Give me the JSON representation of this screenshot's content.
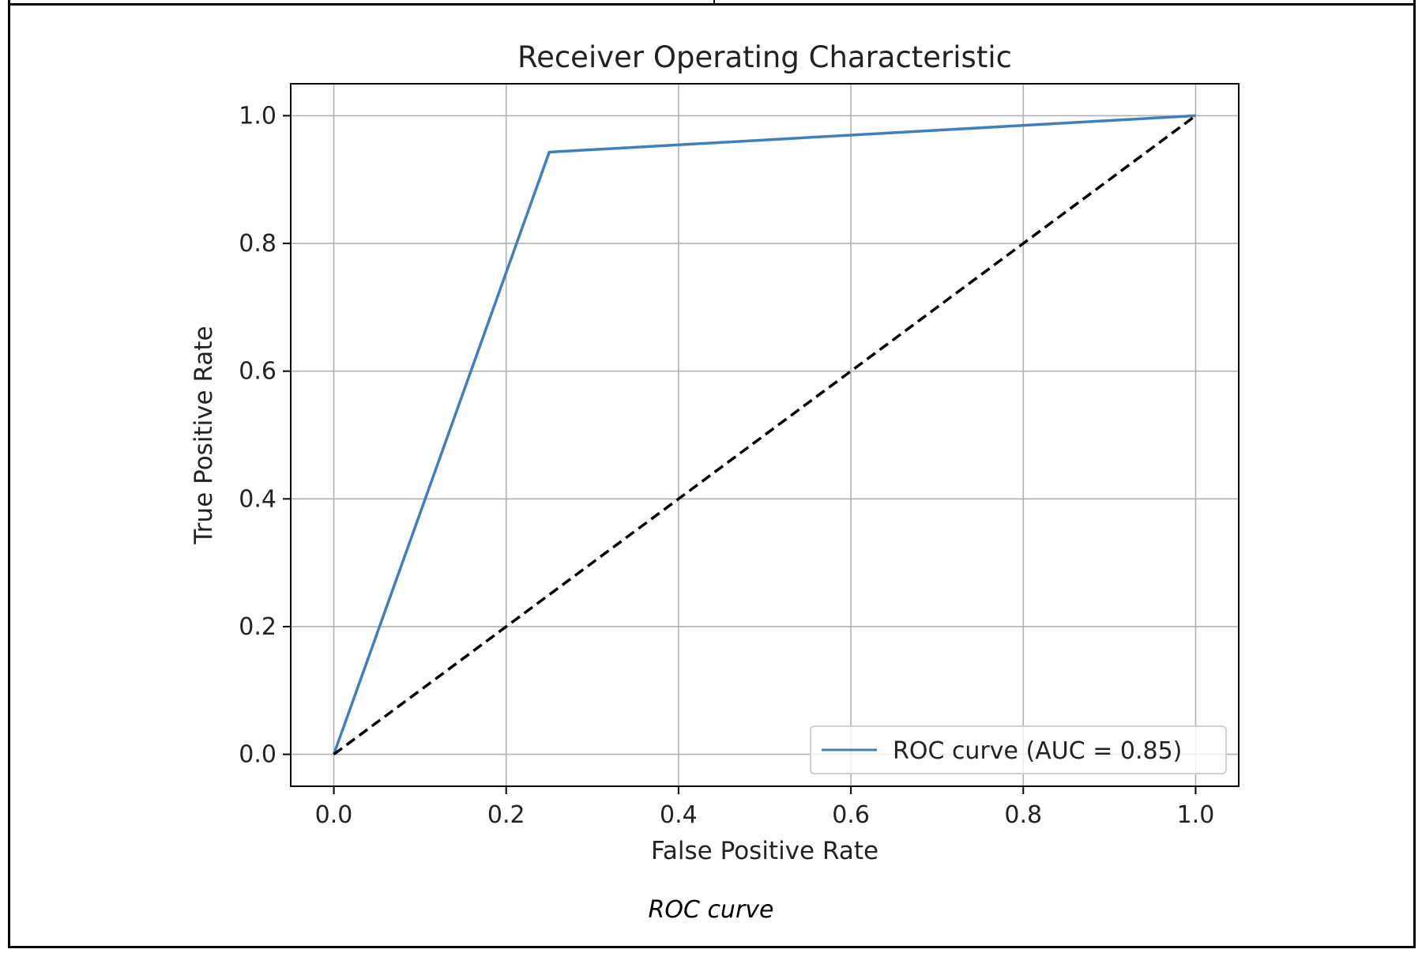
{
  "chart_data": {
    "type": "line",
    "title": "Receiver Operating Characteristic",
    "xlabel": "False Positive Rate",
    "ylabel": "True Positive Rate",
    "xlim": [
      -0.05,
      1.05
    ],
    "ylim": [
      -0.05,
      1.05
    ],
    "xticks": [
      0.0,
      0.2,
      0.4,
      0.6,
      0.8,
      1.0
    ],
    "yticks": [
      0.0,
      0.2,
      0.4,
      0.6,
      0.8,
      1.0
    ],
    "xtick_labels": [
      "0.0",
      "0.2",
      "0.4",
      "0.6",
      "0.8",
      "1.0"
    ],
    "ytick_labels": [
      "0.0",
      "0.2",
      "0.4",
      "0.6",
      "0.8",
      "1.0"
    ],
    "grid": true,
    "legend_position": "lower-right",
    "series": [
      {
        "name": "ROC curve (AUC = 0.85)",
        "color": "#3f7fbf",
        "style": "solid",
        "x": [
          0.0,
          0.25,
          1.0
        ],
        "y": [
          0.0,
          0.943,
          1.0
        ]
      },
      {
        "color": "#000000",
        "style": "dashed",
        "x": [
          0.0,
          1.0
        ],
        "y": [
          0.0,
          1.0
        ]
      }
    ]
  },
  "caption": "ROC curve"
}
